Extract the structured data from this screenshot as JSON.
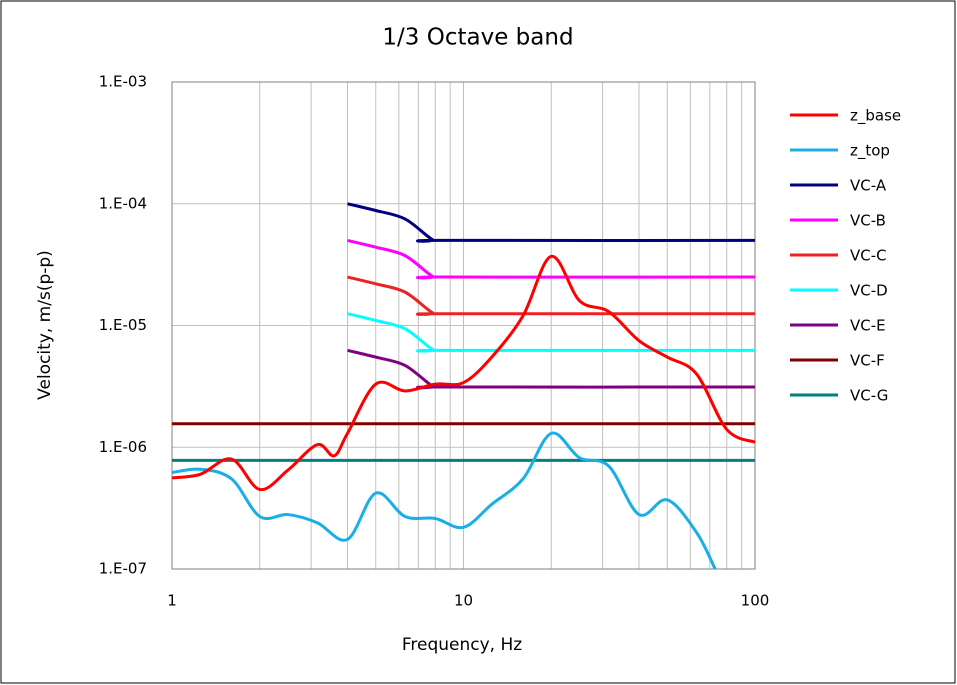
{
  "chart_data": {
    "type": "line",
    "title": "1/3 Octave band",
    "xlabel": "Frequency, Hz",
    "ylabel": "Velocity, m/s(p-p)",
    "xscale": "log",
    "yscale": "log",
    "xlim": [
      1,
      100
    ],
    "ylim": [
      1e-07,
      0.001
    ],
    "xticks": [
      1,
      10,
      100
    ],
    "xminorticks": [
      2,
      3,
      4,
      5,
      6,
      7,
      8,
      9,
      20,
      30,
      40,
      50,
      60,
      70,
      80,
      90
    ],
    "yticks": [
      {
        "value": 1e-07,
        "label": "1.E-07"
      },
      {
        "value": 1e-06,
        "label": "1.E-06"
      },
      {
        "value": 1e-05,
        "label": "1.E-05"
      },
      {
        "value": 0.0001,
        "label": "1.E-04"
      },
      {
        "value": 0.001,
        "label": "1.E-03"
      }
    ],
    "grid": true,
    "legend": "right",
    "series": [
      {
        "name": "z_base",
        "color": "#ff0000",
        "x": [
          1,
          1.25,
          1.6,
          2,
          2.5,
          3.15,
          3.6,
          4,
          5,
          6.3,
          8,
          10,
          12.5,
          16,
          20,
          25,
          31.5,
          40,
          50,
          63,
          80,
          100
        ],
        "values": [
          5.6e-07,
          6e-07,
          8e-07,
          4.5e-07,
          6.5e-07,
          1.05e-06,
          8.5e-07,
          1.3e-06,
          3.3e-06,
          2.9e-06,
          3.3e-06,
          3.4e-06,
          5.5e-06,
          1.2e-05,
          3.7e-05,
          1.6e-05,
          1.3e-05,
          7.5e-06,
          5.5e-06,
          4e-06,
          1.4e-06,
          1.1e-06
        ]
      },
      {
        "name": "z_top",
        "color": "#19aee6",
        "x": [
          1,
          1.25,
          1.6,
          2,
          2.5,
          3.15,
          4,
          5,
          6.3,
          8,
          10,
          12.5,
          16,
          20,
          25,
          31.5,
          40,
          50,
          63,
          73
        ],
        "values": [
          6.2e-07,
          6.6e-07,
          5.5e-07,
          2.7e-07,
          2.8e-07,
          2.4e-07,
          1.75e-07,
          4.2e-07,
          2.7e-07,
          2.6e-07,
          2.2e-07,
          3.4e-07,
          5.5e-07,
          1.3e-06,
          8.2e-07,
          7e-07,
          2.8e-07,
          3.7e-07,
          2e-07,
          1e-07
        ]
      },
      {
        "name": "VC-A",
        "color": "#000080",
        "x": [
          4,
          5,
          6.3,
          7.8,
          8.5,
          100
        ],
        "values": [
          0.0001,
          8.8e-05,
          7.5e-05,
          5.1e-05,
          5e-05,
          5e-05
        ]
      },
      {
        "name": "VC-B",
        "color": "#ff00ff",
        "x": [
          4,
          5,
          6.3,
          7.8,
          8.5,
          100
        ],
        "values": [
          5e-05,
          4.4e-05,
          3.75e-05,
          2.55e-05,
          2.5e-05,
          2.5e-05
        ]
      },
      {
        "name": "VC-C",
        "color": "#ee2222",
        "x": [
          4,
          5,
          6.3,
          7.8,
          8.5,
          100
        ],
        "values": [
          2.5e-05,
          2.2e-05,
          1.88e-05,
          1.28e-05,
          1.25e-05,
          1.25e-05
        ]
      },
      {
        "name": "VC-D",
        "color": "#00ffff",
        "x": [
          4,
          5,
          6.3,
          7.8,
          8.5,
          100
        ],
        "values": [
          1.25e-05,
          1.1e-05,
          9.4e-06,
          6.4e-06,
          6.25e-06,
          6.25e-06
        ]
      },
      {
        "name": "VC-E",
        "color": "#800080",
        "x": [
          4,
          5,
          6.3,
          7.8,
          8.5,
          100
        ],
        "values": [
          6.25e-06,
          5.5e-06,
          4.7e-06,
          3.2e-06,
          3.125e-06,
          3.125e-06
        ]
      },
      {
        "name": "VC-F",
        "color": "#800000",
        "x": [
          1,
          100
        ],
        "values": [
          1.56e-06,
          1.56e-06
        ]
      },
      {
        "name": "VC-G",
        "color": "#008080",
        "x": [
          1,
          100
        ],
        "values": [
          7.8e-07,
          7.8e-07
        ]
      }
    ]
  }
}
